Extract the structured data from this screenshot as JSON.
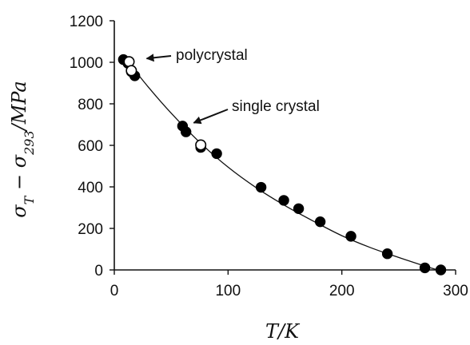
{
  "chart_data": {
    "type": "scatter",
    "title": "",
    "xlabel": "T/K",
    "ylabel": "σT − σ293/MPa",
    "xlim": [
      0,
      300
    ],
    "ylim": [
      0,
      1200
    ],
    "xticks": [
      0,
      100,
      200,
      300
    ],
    "yticks": [
      0,
      200,
      400,
      600,
      800,
      1000,
      1200
    ],
    "grid": false,
    "series": [
      {
        "name": "single crystal",
        "marker": "filled-circle",
        "color": "#000000",
        "points": [
          {
            "x": 8,
            "y": 1013
          },
          {
            "x": 12,
            "y": 995
          },
          {
            "x": 15,
            "y": 955
          },
          {
            "x": 18,
            "y": 935
          },
          {
            "x": 60,
            "y": 693
          },
          {
            "x": 63,
            "y": 665
          },
          {
            "x": 76,
            "y": 590
          },
          {
            "x": 90,
            "y": 560
          },
          {
            "x": 129,
            "y": 398
          },
          {
            "x": 149,
            "y": 335
          },
          {
            "x": 162,
            "y": 295
          },
          {
            "x": 181,
            "y": 232
          },
          {
            "x": 208,
            "y": 162
          },
          {
            "x": 240,
            "y": 78
          },
          {
            "x": 273,
            "y": 10
          },
          {
            "x": 287,
            "y": 0
          }
        ]
      },
      {
        "name": "polycrystal",
        "marker": "open-circle",
        "color": "#000000",
        "points": [
          {
            "x": 13,
            "y": 1003
          },
          {
            "x": 15,
            "y": 960
          },
          {
            "x": 76,
            "y": 602
          }
        ]
      }
    ],
    "fit_curve": [
      {
        "x": 8,
        "y": 1030
      },
      {
        "x": 30,
        "y": 880
      },
      {
        "x": 50,
        "y": 755
      },
      {
        "x": 75,
        "y": 615
      },
      {
        "x": 100,
        "y": 495
      },
      {
        "x": 125,
        "y": 395
      },
      {
        "x": 150,
        "y": 310
      },
      {
        "x": 175,
        "y": 235
      },
      {
        "x": 200,
        "y": 165
      },
      {
        "x": 225,
        "y": 108
      },
      {
        "x": 250,
        "y": 60
      },
      {
        "x": 275,
        "y": 15
      },
      {
        "x": 288,
        "y": -5
      }
    ],
    "annotations": [
      {
        "text": "polycrystal",
        "target": {
          "x": 13,
          "y": 1003
        }
      },
      {
        "text": "single crystal",
        "target": {
          "x": 60,
          "y": 693
        }
      }
    ]
  }
}
